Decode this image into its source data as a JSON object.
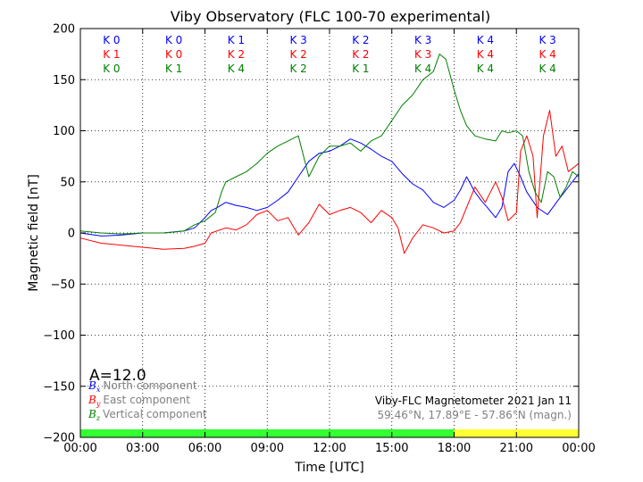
{
  "chart_data": {
    "type": "line",
    "title": "Viby Observatory (FLC 100-70 experimental)",
    "xlabel": "Time [UTC]",
    "ylabel": "Magnetic field [nT]",
    "xlim": [
      0,
      24
    ],
    "ylim": [
      -200,
      200
    ],
    "x_tick_labels": [
      "00:00",
      "03:00",
      "06:00",
      "09:00",
      "12:00",
      "15:00",
      "18:00",
      "21:00",
      "00:00"
    ],
    "y_ticks": [
      200,
      150,
      100,
      50,
      0,
      -50,
      -100,
      -150,
      -200
    ],
    "y_tick_labels": [
      "200",
      "150",
      "100",
      "50",
      "0",
      "−50",
      "−100",
      "−150",
      "−200"
    ],
    "grid": true,
    "k_indices": [
      {
        "north": "K 0",
        "east": "K 1",
        "vertical": "K 0"
      },
      {
        "north": "K 0",
        "east": "K 0",
        "vertical": "K 1"
      },
      {
        "north": "K 1",
        "east": "K 2",
        "vertical": "K 4"
      },
      {
        "north": "K 3",
        "east": "K 2",
        "vertical": "K 2"
      },
      {
        "north": "K 2",
        "east": "K 2",
        "vertical": "K 1"
      },
      {
        "north": "K 3",
        "east": "K 3",
        "vertical": "K 4"
      },
      {
        "north": "K 4",
        "east": "K 4",
        "vertical": "K 4"
      },
      {
        "north": "K 3",
        "east": "K 4",
        "vertical": "K 4"
      }
    ],
    "a_index": "A=12.0",
    "legend": [
      {
        "symbol": "B",
        "sub": "x",
        "label": "North component",
        "color": "#0000ff"
      },
      {
        "symbol": "B",
        "sub": "y",
        "label": "East component",
        "color": "#ff0000"
      },
      {
        "symbol": "B",
        "sub": "z",
        "label": "Vertical component",
        "color": "#008000"
      }
    ],
    "footer": {
      "line1": "Viby-FLC Magnetometer 2021 Jan 11",
      "line2": "59.46°N, 17.89°E - 57.86°N (magn.)"
    },
    "day_bar": [
      {
        "from": 0,
        "to": 18,
        "color": "#33ff33"
      },
      {
        "from": 18,
        "to": 24,
        "color": "#ffff33"
      }
    ],
    "series": [
      {
        "name": "North component",
        "color": "#0000ff",
        "x": [
          0,
          1,
          2,
          3,
          4,
          5,
          5.5,
          6,
          6.3,
          6.6,
          7,
          7.5,
          8,
          8.5,
          9,
          9.5,
          10,
          10.5,
          11,
          11.5,
          12,
          12.5,
          13,
          13.5,
          14,
          14.5,
          15,
          15.5,
          16,
          16.5,
          17,
          17.5,
          18,
          18.3,
          18.6,
          19,
          19.3,
          19.6,
          20,
          20.3,
          20.6,
          20.9,
          21.2,
          21.5,
          22,
          22.5,
          23,
          23.5,
          24
        ],
        "y": [
          0,
          -3,
          -2,
          0,
          0,
          2,
          5,
          15,
          22,
          25,
          30,
          27,
          25,
          22,
          25,
          32,
          40,
          55,
          70,
          78,
          80,
          85,
          92,
          88,
          82,
          75,
          70,
          58,
          48,
          42,
          30,
          25,
          32,
          42,
          55,
          40,
          32,
          25,
          15,
          25,
          60,
          68,
          55,
          40,
          25,
          18,
          32,
          45,
          58
        ]
      },
      {
        "name": "East component",
        "color": "#ff0000",
        "x": [
          0,
          1,
          2,
          3,
          4,
          5,
          5.5,
          6,
          6.3,
          7,
          7.5,
          8,
          8.5,
          9,
          9.5,
          10,
          10.5,
          11,
          11.5,
          12,
          12.5,
          13,
          13.5,
          14,
          14.5,
          15,
          15.3,
          15.6,
          16,
          16.5,
          17,
          17.5,
          18,
          18.3,
          18.6,
          19,
          19.5,
          20,
          20.3,
          20.6,
          21,
          21.2,
          21.5,
          21.8,
          22,
          22.3,
          22.6,
          22.9,
          23.2,
          23.5,
          24
        ],
        "y": [
          -5,
          -10,
          -12,
          -14,
          -16,
          -15,
          -13,
          -10,
          0,
          5,
          3,
          8,
          18,
          22,
          12,
          15,
          -2,
          10,
          28,
          18,
          22,
          25,
          20,
          10,
          22,
          15,
          5,
          -20,
          -5,
          8,
          5,
          0,
          2,
          10,
          25,
          45,
          30,
          50,
          35,
          12,
          20,
          80,
          95,
          75,
          15,
          95,
          120,
          75,
          85,
          60,
          68
        ]
      },
      {
        "name": "Vertical component",
        "color": "#008000",
        "x": [
          0,
          1,
          2,
          3,
          4,
          5,
          5.5,
          6,
          6.5,
          6.8,
          7,
          7.5,
          8,
          8.5,
          9,
          9.5,
          10,
          10.5,
          11,
          11.5,
          12,
          12.5,
          13,
          13.5,
          14,
          14.5,
          15,
          15.5,
          16,
          16.5,
          17,
          17.3,
          17.6,
          18,
          18.3,
          18.6,
          19,
          19.5,
          20,
          20.3,
          20.6,
          21,
          21.3,
          21.6,
          21.9,
          22.2,
          22.5,
          22.8,
          23.1,
          23.4,
          23.7,
          24
        ],
        "y": [
          2,
          0,
          -1,
          0,
          0,
          2,
          8,
          12,
          20,
          40,
          50,
          55,
          60,
          68,
          78,
          85,
          90,
          95,
          55,
          75,
          85,
          85,
          88,
          80,
          90,
          95,
          110,
          125,
          135,
          150,
          158,
          175,
          170,
          140,
          120,
          105,
          95,
          92,
          90,
          100,
          98,
          100,
          95,
          60,
          40,
          30,
          60,
          55,
          35,
          45,
          60,
          55
        ]
      }
    ]
  }
}
